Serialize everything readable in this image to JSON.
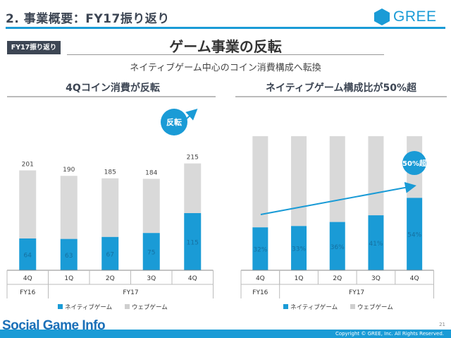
{
  "header": {
    "section_title": "2. 事業概要：FY17振り返り",
    "logo_text": "GREE"
  },
  "tag": "FY17振り返り",
  "headline": "ゲーム事業の反転",
  "subhead": "ネイティブゲーム中心のコイン消費構成へ転換",
  "colors": {
    "native": "#1a9bd6",
    "web": "#d9d9d9",
    "accent": "#1a9bd6",
    "dark": "#3d4654"
  },
  "chart_data": [
    {
      "type": "bar",
      "stacked": true,
      "title": "4Qコイン消費が反転",
      "categories": [
        "4Q",
        "1Q",
        "2Q",
        "3Q",
        "4Q"
      ],
      "fiscal_years": [
        {
          "label": "FY16",
          "span": 1
        },
        {
          "label": "FY17",
          "span": 4
        }
      ],
      "totals": [
        201,
        190,
        185,
        184,
        215
      ],
      "series": [
        {
          "name": "ネイティブゲーム",
          "values": [
            64,
            63,
            67,
            75,
            115
          ]
        },
        {
          "name": "ウェブゲーム",
          "values": [
            137,
            127,
            118,
            109,
            100
          ]
        }
      ],
      "ylim": [
        0,
        240
      ],
      "legend": "bottom",
      "annotation": "反転"
    },
    {
      "type": "bar",
      "stacked": true,
      "title": "ネイティブゲーム構成比が50%超",
      "categories": [
        "4Q",
        "1Q",
        "2Q",
        "3Q",
        "4Q"
      ],
      "fiscal_years": [
        {
          "label": "FY16",
          "span": 1
        },
        {
          "label": "FY17",
          "span": 4
        }
      ],
      "series": [
        {
          "name": "ネイティブゲーム",
          "values": [
            32,
            33,
            36,
            41,
            54
          ],
          "labels": [
            "32%",
            "33%",
            "36%",
            "41%",
            "54%"
          ]
        },
        {
          "name": "ウェブゲーム",
          "values": [
            68,
            67,
            64,
            59,
            46
          ]
        }
      ],
      "ylim": [
        0,
        100
      ],
      "legend": "bottom",
      "annotation": "50%超"
    }
  ],
  "footer": {
    "copyright": "Copyright © GREE, Inc. All Rights Reserved.",
    "page": "21",
    "watermark": "Social Game Info"
  }
}
